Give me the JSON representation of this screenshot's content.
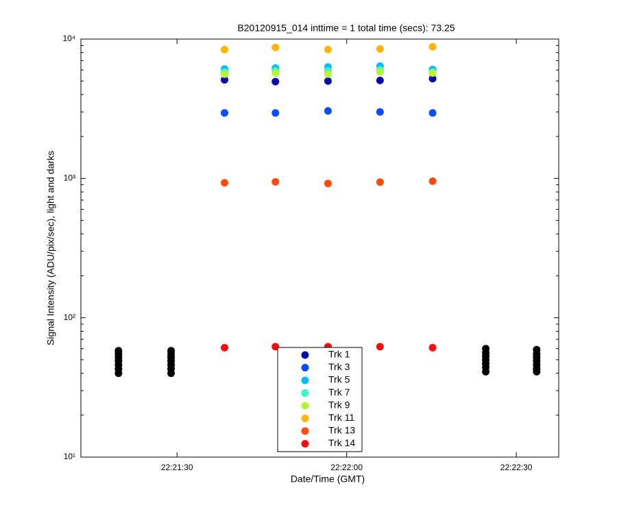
{
  "chart_data": {
    "type": "scatter",
    "title": "B20120915_014 inttime = 1 total time (secs): 73.25",
    "xlabel": "Date/Time (GMT)",
    "ylabel": "Signal Intensity (ADU/pix/sec), light and darks",
    "xlim": [
      80473,
      80557.5
    ],
    "xticks": [
      {
        "value": 80490,
        "label": "22:21:30"
      },
      {
        "value": 80520,
        "label": "22:22:00"
      },
      {
        "value": 80550,
        "label": "22:22:30"
      }
    ],
    "ylim": [
      10,
      10000
    ],
    "yscale": "log",
    "yticks": [
      {
        "value": 10,
        "label": "10¹"
      },
      {
        "value": 100,
        "label": "10²"
      },
      {
        "value": 1000,
        "label": "10³"
      },
      {
        "value": 10000,
        "label": "10⁴"
      }
    ],
    "legend": "lower center",
    "series": [
      {
        "color": "#000000",
        "x": [
          80479.65,
          80479.65,
          80479.65,
          80479.65,
          80479.65,
          80479.65,
          80479.65,
          80488.95,
          80488.95,
          80488.95,
          80488.95,
          80488.95,
          80488.95,
          80488.95,
          80544.6,
          80544.6,
          80544.6,
          80544.6,
          80544.6,
          80544.6,
          80544.6,
          80553.6,
          80553.6,
          80553.6,
          80553.6,
          80553.6,
          80553.6,
          80553.6
        ],
        "values": [
          58,
          55,
          52,
          49,
          46,
          43,
          40,
          58,
          55,
          52,
          49,
          46,
          43,
          40,
          60,
          56,
          53,
          50,
          47,
          44,
          41,
          59,
          55,
          52,
          49,
          46,
          43,
          41
        ]
      },
      {
        "name": "Trk 1",
        "color": "#0a0aa8",
        "x": [
          80498.4,
          80507.4,
          80516.7,
          80525.9,
          80535.2
        ],
        "values": [
          5100,
          4950,
          5000,
          5050,
          5200
        ]
      },
      {
        "name": "Trk 3",
        "color": "#0a4cff",
        "x": [
          80498.4,
          80507.4,
          80516.7,
          80525.9,
          80535.2
        ],
        "values": [
          2950,
          2950,
          3050,
          3000,
          2950
        ]
      },
      {
        "name": "Trk 5",
        "color": "#0abcf5",
        "x": [
          80498.4,
          80507.4,
          80516.7,
          80525.9,
          80535.2
        ],
        "values": [
          6100,
          6200,
          6300,
          6400,
          6050
        ]
      },
      {
        "name": "Trk 7",
        "color": "#3cf5c8",
        "x": [
          80498.4,
          80507.4,
          80516.7,
          80525.9,
          80535.2
        ],
        "values": [
          5800,
          5900,
          5900,
          6000,
          5800
        ]
      },
      {
        "name": "Trk 9",
        "color": "#b4f53c",
        "x": [
          80498.4,
          80507.4,
          80516.7,
          80525.9,
          80535.2
        ],
        "values": [
          5600,
          5700,
          5600,
          5800,
          5700
        ]
      },
      {
        "name": "Trk 11",
        "color": "#ffb40a",
        "x": [
          80498.4,
          80507.4,
          80516.7,
          80525.9,
          80535.2
        ],
        "values": [
          8400,
          8700,
          8400,
          8500,
          8800
        ]
      },
      {
        "name": "Trk 13",
        "color": "#ff4c0a",
        "x": [
          80498.4,
          80507.4,
          80516.7,
          80525.9,
          80535.2
        ],
        "values": [
          930,
          945,
          920,
          940,
          955
        ]
      },
      {
        "name": "Trk 14",
        "color": "#f01010",
        "x": [
          80498.4,
          80507.4,
          80516.7,
          80525.9,
          80535.2
        ],
        "values": [
          61,
          62,
          62,
          62,
          61
        ]
      }
    ]
  }
}
